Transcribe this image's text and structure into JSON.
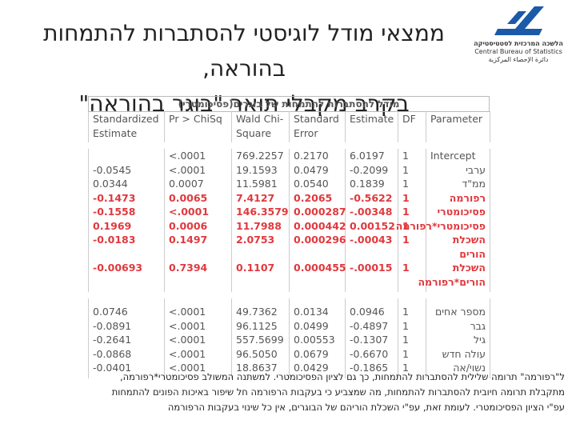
{
  "header": {
    "title_lines": [
      "ממצאי מודל לוגיסטי להסתברות להתמחות בהוראה,",
      "בקרב מקבלי תואר \"בוגר בהוראה\""
    ],
    "logo": [
      "הלשכה המרכזית לסטטיסטיקה",
      "Central Bureau of Statistics",
      "دائرة الإحصاء المركزية"
    ]
  },
  "table": {
    "caption": "מודל להסתברות להתמחות של בוגרים(פסיכומטרי)",
    "columns": [
      "Standardized Estimate",
      "Pr > ChiSq",
      "Wald Chi-Square",
      "Standard Error",
      "Estimate",
      "DF",
      "Parameter"
    ],
    "groups": [
      {
        "rows": [
          {
            "cells": [
              null,
              "<.0001",
              "769.2257",
              "0.2170",
              "6.0197",
              "1",
              "Intercept"
            ],
            "highlight": false
          },
          {
            "cells": [
              "-0.0545",
              "<.0001",
              "19.1593",
              "0.0479",
              "-0.2099",
              "1",
              "ערבי"
            ],
            "highlight": false
          },
          {
            "cells": [
              "0.0344",
              "0.0007",
              "11.5981",
              "0.0540",
              "0.1839",
              "1",
              "ממ\"ד"
            ],
            "highlight": false
          },
          {
            "cells": [
              "-0.1473",
              "0.0065",
              "7.4127",
              "0.2065",
              "-0.5622",
              "1",
              "רפורמה"
            ],
            "highlight": true
          },
          {
            "cells": [
              "-0.1558",
              "<.0001",
              "146.3579",
              "0.000287",
              "-.00348",
              "1",
              "פסיכומטרי"
            ],
            "highlight": true
          },
          {
            "cells": [
              "0.1969",
              "0.0006",
              "11.7988",
              "0.000442",
              "0.00152",
              "1",
              "פסיכומטרי*רפורמה"
            ],
            "highlight": true
          },
          {
            "cells": [
              "-0.0183",
              "0.1497",
              "2.0753",
              "0.000296",
              "-.00043",
              "1",
              "השכלת הורים"
            ],
            "highlight": true
          },
          {
            "cells": [
              "-0.00693",
              "0.7394",
              "0.1107",
              "0.000455",
              "-.00015",
              "1",
              "השכלת הורים*רפורמה"
            ],
            "highlight": true
          }
        ]
      },
      {
        "rows": [
          {
            "cells": [
              "0.0746",
              "<.0001",
              "49.7362",
              "0.0134",
              "0.0946",
              "1",
              "מספר אחים"
            ],
            "highlight": false
          },
          {
            "cells": [
              "-0.0891",
              "<.0001",
              "96.1125",
              "0.0499",
              "-0.4897",
              "1",
              "גבר"
            ],
            "highlight": false
          },
          {
            "cells": [
              "-0.2641",
              "<.0001",
              "557.5699",
              "0.00553",
              "-0.1307",
              "1",
              "גיל"
            ],
            "highlight": false
          },
          {
            "cells": [
              "-0.0868",
              "<.0001",
              "96.5050",
              "0.0679",
              "-0.6670",
              "1",
              "עולה חדש"
            ],
            "highlight": false
          },
          {
            "cells": [
              "-0.0401",
              "<.0001",
              "18.8637",
              "0.0429",
              "-0.1865",
              "1",
              "נשוי/אה"
            ],
            "highlight": false
          }
        ]
      }
    ]
  },
  "footer": {
    "lines": [
      "ל\"רפורמה\" תרומה שלילית להסתברות להתמחות, כך גם לציון הפסיכומטרי. למשתנה המשולב פסיכומטרי*רפורמה,",
      "מתקבלת תרומה חיובית להסתברות להתמחות, מה שמצביע כי בעקבות הרפורמה חל שיפור באיכות הפונים להתמחות",
      "עפ\"י הציון הפסיכומטרי. לעומת זאת, עפ\"י השכלת הוריהם של הבוגרים, אין כל שינוי בעקבות הרפורמה"
    ]
  }
}
